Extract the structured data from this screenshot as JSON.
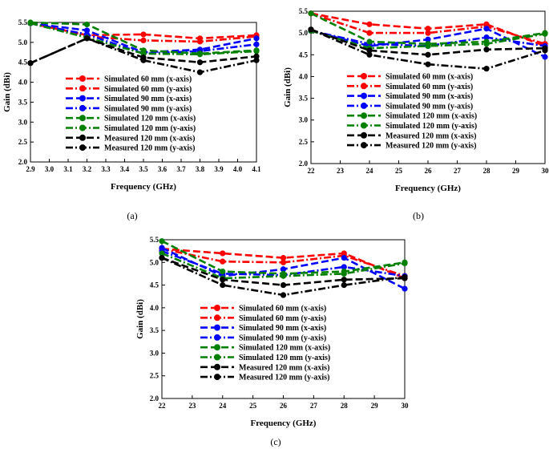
{
  "colors": {
    "red": "#ff0000",
    "blue": "#0000ff",
    "green": "#008000",
    "black": "#000000",
    "frame": "#000000",
    "background": "#ffffff"
  },
  "chart_data": [
    {
      "type": "line",
      "panel_label": "(a)",
      "title": "",
      "xlabel": "Frequency (GHz)",
      "ylabel": "Gain (dBi)",
      "xlim": [
        2.9,
        4.1
      ],
      "ylim": [
        2.0,
        5.5
      ],
      "xticks": [
        2.9,
        3.0,
        3.1,
        3.2,
        3.3,
        3.4,
        3.5,
        3.6,
        3.7,
        3.8,
        3.9,
        4.0,
        4.1
      ],
      "xtick_labels": [
        "2.9",
        "3.0",
        "3.1",
        "3.2",
        "3.3",
        "3.4",
        "3.5",
        "3.6",
        "3.7",
        "3.8",
        "3.9",
        "4.0",
        "4.1"
      ],
      "yticks": [
        2.0,
        2.5,
        3.0,
        3.5,
        4.0,
        4.5,
        5.0,
        5.5
      ],
      "ytick_labels": [
        "2.0",
        "2.5",
        "3.0",
        "3.5",
        "4.0",
        "4.5",
        "5.0",
        "5.5"
      ],
      "grid": false,
      "legend_position": "center",
      "x": [
        2.9,
        3.2,
        3.5,
        3.8,
        4.1
      ],
      "series": [
        {
          "name": "Simulated 60 mm (x-axis)",
          "color": "red",
          "dash": "long",
          "values": [
            5.48,
            5.18,
            5.2,
            5.1,
            5.18
          ]
        },
        {
          "name": "Simulated 60 mm (y-axis)",
          "color": "red",
          "dash": "dashdot",
          "values": [
            5.48,
            5.15,
            5.05,
            5.02,
            5.15
          ]
        },
        {
          "name": "Simulated 90 mm (x-axis)",
          "color": "blue",
          "dash": "long",
          "values": [
            5.48,
            5.3,
            4.75,
            4.82,
            5.1
          ]
        },
        {
          "name": "Simulated 90 mm (y-axis)",
          "color": "blue",
          "dash": "dashdot",
          "values": [
            5.48,
            5.2,
            4.72,
            4.78,
            4.95
          ]
        },
        {
          "name": "Simulated 120 mm (x-axis)",
          "color": "green",
          "dash": "long",
          "values": [
            5.5,
            5.45,
            4.8,
            4.72,
            4.8
          ]
        },
        {
          "name": "Simulated 120 mm (y-axis)",
          "color": "green",
          "dash": "dashdot",
          "values": [
            5.48,
            5.12,
            4.72,
            4.7,
            4.78
          ]
        },
        {
          "name": "Measured 120 mm (x-axis)",
          "color": "black",
          "dash": "long",
          "values": [
            4.48,
            5.1,
            4.62,
            4.5,
            4.65
          ]
        },
        {
          "name": "Measured 120 mm (y-axis)",
          "color": "black",
          "dash": "dashdot",
          "values": [
            4.48,
            5.1,
            4.55,
            4.25,
            4.55
          ]
        }
      ]
    },
    {
      "type": "line",
      "panel_label": "(b)",
      "title": "",
      "xlabel": "Frequency (GHz)",
      "ylabel": "Gain (dBi)",
      "xlim": [
        22,
        30
      ],
      "ylim": [
        2.0,
        5.5
      ],
      "xticks": [
        22,
        23,
        24,
        25,
        26,
        27,
        28,
        29,
        30
      ],
      "xtick_labels": [
        "22",
        "23",
        "24",
        "25",
        "26",
        "27",
        "28",
        "29",
        "30"
      ],
      "yticks": [
        2.0,
        2.5,
        3.0,
        3.5,
        4.0,
        4.5,
        5.0,
        5.5
      ],
      "ytick_labels": [
        "2.0",
        "2.5",
        "3.0",
        "3.5",
        "4.0",
        "4.5",
        "5.0",
        "5.5"
      ],
      "grid": false,
      "legend_position": "center",
      "x": [
        22,
        24,
        26,
        28,
        30
      ],
      "series": [
        {
          "name": "Simulated 60 mm (x-axis)",
          "color": "red",
          "dash": "long",
          "values": [
            5.45,
            5.2,
            5.1,
            5.2,
            4.7
          ]
        },
        {
          "name": "Simulated 60 mm (y-axis)",
          "color": "red",
          "dash": "dashdot",
          "values": [
            5.45,
            5.0,
            5.0,
            5.15,
            4.75
          ]
        },
        {
          "name": "Simulated 90 mm (x-axis)",
          "color": "blue",
          "dash": "long",
          "values": [
            5.05,
            4.7,
            4.85,
            5.1,
            4.45
          ]
        },
        {
          "name": "Simulated 90 mm (y-axis)",
          "color": "blue",
          "dash": "dashdot",
          "values": [
            5.05,
            4.75,
            4.7,
            4.9,
            4.7
          ]
        },
        {
          "name": "Simulated 120 mm (x-axis)",
          "color": "green",
          "dash": "long",
          "values": [
            5.45,
            4.8,
            4.75,
            4.8,
            5.0
          ]
        },
        {
          "name": "Simulated 120 mm (y-axis)",
          "color": "green",
          "dash": "dashdot",
          "values": [
            5.05,
            4.65,
            4.7,
            4.75,
            4.98
          ]
        },
        {
          "name": "Measured 120 mm (x-axis)",
          "color": "black",
          "dash": "long",
          "values": [
            5.08,
            4.6,
            4.5,
            4.62,
            4.65
          ]
        },
        {
          "name": "Measured 120 mm (y-axis)",
          "color": "black",
          "dash": "dashdot",
          "values": [
            5.08,
            4.5,
            4.28,
            4.18,
            4.6
          ]
        }
      ]
    },
    {
      "type": "line",
      "panel_label": "(c)",
      "title": "",
      "xlabel": "Frequency (GHz)",
      "ylabel": "Gain (dBi)",
      "xlim": [
        22,
        30
      ],
      "ylim": [
        2.0,
        5.5
      ],
      "xticks": [
        22,
        23,
        24,
        25,
        26,
        27,
        28,
        29,
        30
      ],
      "xtick_labels": [
        "22",
        "23",
        "24",
        "25",
        "26",
        "27",
        "28",
        "29",
        "30"
      ],
      "yticks": [
        2.0,
        2.5,
        3.0,
        3.5,
        4.0,
        4.5,
        5.0,
        5.5
      ],
      "ytick_labels": [
        "2.0",
        "2.5",
        "3.0",
        "3.5",
        "4.0",
        "4.5",
        "5.0",
        "5.5"
      ],
      "grid": false,
      "legend_position": "center",
      "x": [
        22,
        24,
        26,
        28,
        30
      ],
      "series": [
        {
          "name": "Simulated 60 mm (x-axis)",
          "color": "red",
          "dash": "long",
          "values": [
            5.3,
            5.2,
            5.1,
            5.2,
            4.65
          ]
        },
        {
          "name": "Simulated 60 mm (y-axis)",
          "color": "red",
          "dash": "dashdot",
          "values": [
            5.3,
            5.02,
            5.0,
            5.15,
            4.7
          ]
        },
        {
          "name": "Simulated 90 mm (x-axis)",
          "color": "blue",
          "dash": "long",
          "values": [
            5.32,
            4.7,
            4.85,
            5.1,
            4.42
          ]
        },
        {
          "name": "Simulated 90 mm (y-axis)",
          "color": "blue",
          "dash": "dashdot",
          "values": [
            5.25,
            4.75,
            4.72,
            4.9,
            4.7
          ]
        },
        {
          "name": "Simulated 120 mm (x-axis)",
          "color": "green",
          "dash": "long",
          "values": [
            5.47,
            4.8,
            4.75,
            4.8,
            5.0
          ]
        },
        {
          "name": "Simulated 120 mm (y-axis)",
          "color": "green",
          "dash": "dashdot",
          "values": [
            5.2,
            4.65,
            4.7,
            4.75,
            4.98
          ]
        },
        {
          "name": "Measured 120 mm (x-axis)",
          "color": "black",
          "dash": "long",
          "values": [
            5.1,
            4.62,
            4.5,
            4.62,
            4.65
          ]
        },
        {
          "name": "Measured 120 mm (y-axis)",
          "color": "black",
          "dash": "dashdot",
          "values": [
            5.1,
            4.5,
            4.28,
            4.5,
            4.68
          ]
        }
      ]
    }
  ]
}
